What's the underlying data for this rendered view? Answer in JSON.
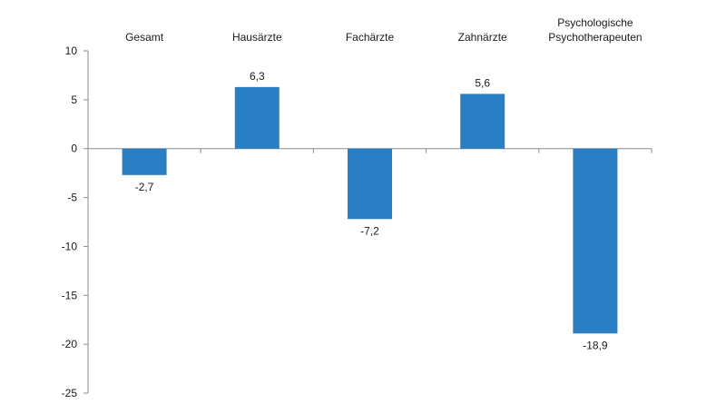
{
  "chart_data": {
    "type": "bar",
    "title": "",
    "xlabel": "",
    "ylabel": "",
    "categories": [
      [
        "Gesamt"
      ],
      [
        "Hausärzte"
      ],
      [
        "Fachärzte"
      ],
      [
        "Zahnärzte"
      ],
      [
        "Psychologische",
        "Psychotherapeuten"
      ]
    ],
    "values": [
      -2.7,
      6.3,
      -7.2,
      5.6,
      -18.9
    ],
    "value_labels": [
      "-2,7",
      "6,3",
      "-7,2",
      "5,6",
      "-18,9"
    ],
    "yticks": [
      10,
      5,
      0,
      -5,
      -10,
      -15,
      -20,
      -25
    ],
    "ytick_labels": [
      "10",
      "5",
      "0",
      "-5",
      "-10",
      "-15",
      "-20",
      "-25"
    ],
    "ylim": [
      -25,
      10
    ],
    "grid": false,
    "legend": "none",
    "colors": {
      "bar": "#2a7fc4",
      "axis": "#8c8c8c",
      "text": "#1a1a1a"
    }
  }
}
